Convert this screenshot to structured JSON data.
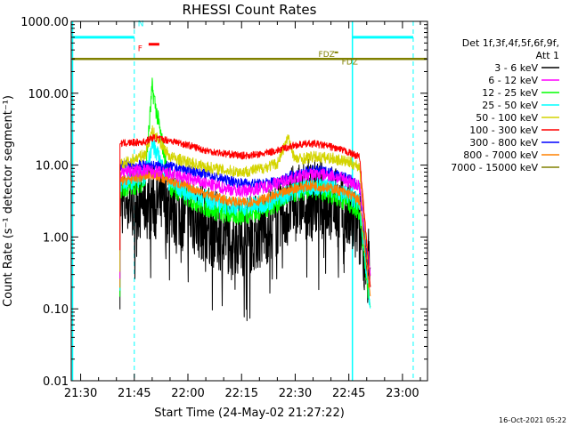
{
  "chart_data": {
    "type": "line",
    "title": "RHESSI Count Rates",
    "xlabel": "Start Time (24-May-02 21:27:22)",
    "ylabel": "Count Rate (s⁻¹ detector segment⁻¹)",
    "xlim": [
      "21:27:22",
      "23:07:00"
    ],
    "ylim": [
      0.01,
      1000
    ],
    "yscale": "log",
    "x_ticks": [
      "21:30",
      "21:45",
      "22:00",
      "22:15",
      "22:30",
      "22:45",
      "23:00"
    ],
    "y_ticks": [
      "0.01",
      "0.10",
      "1.00",
      "10.00",
      "100.00",
      "1000.00"
    ],
    "legend_header": [
      "Det 1f,3f,4f,5f,6f,9f,",
      "Att 1"
    ],
    "legend_position": "top-right outside",
    "timestamp": "16-Oct-2021 05:22",
    "series": [
      {
        "name": "3 - 6 keV",
        "color": "#000000",
        "x": [
          "21:41",
          "21:48",
          "21:55",
          "22:00",
          "22:05",
          "22:10",
          "22:15",
          "22:20",
          "22:25",
          "22:30",
          "22:35",
          "22:40",
          "22:45",
          "22:48",
          "22:51"
        ],
        "values": [
          3.0,
          3.2,
          2.8,
          2.0,
          1.5,
          1.1,
          1.0,
          1.2,
          1.8,
          3.0,
          3.5,
          3.0,
          1.8,
          1.2,
          0.3
        ]
      },
      {
        "name": "6 - 12 keV",
        "color": "#ff00ff",
        "x": [
          "21:41",
          "21:48",
          "21:55",
          "22:00",
          "22:05",
          "22:10",
          "22:15",
          "22:20",
          "22:25",
          "22:30",
          "22:35",
          "22:40",
          "22:45",
          "22:48",
          "22:51"
        ],
        "values": [
          8.0,
          8.5,
          7.5,
          6.5,
          5.5,
          4.8,
          4.3,
          4.8,
          5.6,
          6.8,
          7.5,
          7.2,
          6.0,
          5.0,
          0.3
        ]
      },
      {
        "name": "12 - 25 keV",
        "color": "#00ff00",
        "x": [
          "21:41",
          "21:48",
          "21:50",
          "21:55",
          "22:00",
          "22:05",
          "22:10",
          "22:15",
          "22:20",
          "22:25",
          "22:30",
          "22:35",
          "22:40",
          "22:45",
          "22:48",
          "22:51"
        ],
        "values": [
          4.5,
          6.0,
          120,
          5.0,
          3.5,
          2.6,
          2.1,
          2.0,
          2.3,
          3.0,
          4.2,
          4.6,
          4.0,
          3.0,
          2.3,
          0.1
        ]
      },
      {
        "name": "25 - 50 keV",
        "color": "#00ffff",
        "x": [
          "21:41",
          "21:48",
          "21:50",
          "21:55",
          "22:00",
          "22:05",
          "22:10",
          "22:15",
          "22:20",
          "22:25",
          "22:30",
          "22:35",
          "22:40",
          "22:45",
          "22:48",
          "22:51"
        ],
        "values": [
          5.5,
          7.0,
          20,
          5.5,
          4.2,
          3.4,
          2.8,
          2.6,
          2.8,
          3.4,
          4.6,
          5.2,
          4.8,
          3.8,
          3.0,
          0.1
        ]
      },
      {
        "name": "50 - 100 keV",
        "color": "#d4d400",
        "x": [
          "21:41",
          "21:48",
          "21:50",
          "21:55",
          "22:00",
          "22:05",
          "22:10",
          "22:15",
          "22:20",
          "22:25",
          "22:28",
          "22:30",
          "22:35",
          "22:40",
          "22:45",
          "22:48",
          "22:51"
        ],
        "values": [
          10,
          14,
          30,
          13,
          11,
          9.5,
          8.5,
          8.0,
          8.8,
          10.5,
          24,
          12,
          13,
          12.5,
          11,
          9.5,
          0.2
        ]
      },
      {
        "name": "100 - 300 keV",
        "color": "#ff0000",
        "x": [
          "21:41",
          "21:48",
          "21:50",
          "21:55",
          "22:00",
          "22:05",
          "22:10",
          "22:15",
          "22:20",
          "22:25",
          "22:30",
          "22:35",
          "22:40",
          "22:45",
          "22:48",
          "22:51"
        ],
        "values": [
          20,
          21,
          24,
          22,
          19,
          16,
          14.5,
          13.5,
          14,
          16,
          19,
          20,
          18,
          15,
          13,
          0.2
        ]
      },
      {
        "name": "300 - 800 keV",
        "color": "#0000ff",
        "x": [
          "21:41",
          "21:48",
          "21:55",
          "22:00",
          "22:05",
          "22:10",
          "22:15",
          "22:20",
          "22:25",
          "22:30",
          "22:35",
          "22:40",
          "22:45",
          "22:48",
          "22:51"
        ],
        "values": [
          10,
          10,
          9.5,
          8.5,
          7.5,
          6.3,
          5.6,
          5.5,
          6.0,
          7.5,
          8.5,
          8.0,
          6.5,
          5.0,
          0.2
        ]
      },
      {
        "name": "800 - 7000 keV",
        "color": "#ff8000",
        "x": [
          "21:41",
          "21:48",
          "21:50",
          "21:55",
          "22:00",
          "22:05",
          "22:10",
          "22:15",
          "22:20",
          "22:25",
          "22:30",
          "22:35",
          "22:40",
          "22:45",
          "22:48",
          "22:51"
        ],
        "values": [
          6.0,
          7.0,
          7.5,
          6.0,
          5.0,
          4.0,
          3.3,
          3.0,
          3.2,
          3.8,
          4.8,
          5.2,
          4.8,
          4.0,
          3.2,
          0.15
        ]
      },
      {
        "name": "7000 - 15000 keV",
        "color": "#808000",
        "x": [
          "21:27:22",
          "23:07"
        ],
        "values": [
          300,
          300
        ]
      }
    ],
    "flags": [
      {
        "label": "N",
        "color": "#00ffff",
        "position": "top band"
      },
      {
        "label": "F",
        "color": "#ff0000",
        "position": "below N"
      },
      {
        "label": "FDZ",
        "color": "#808000",
        "position": "near 22:40"
      },
      {
        "label": "FDZ",
        "color": "#808000",
        "position": "near 22:43"
      }
    ],
    "vertical_markers": {
      "solid": [
        "21:27:22",
        "22:46"
      ],
      "dashed": [
        "21:45",
        "23:03"
      ],
      "color": "#00ffff"
    },
    "grid": false
  }
}
